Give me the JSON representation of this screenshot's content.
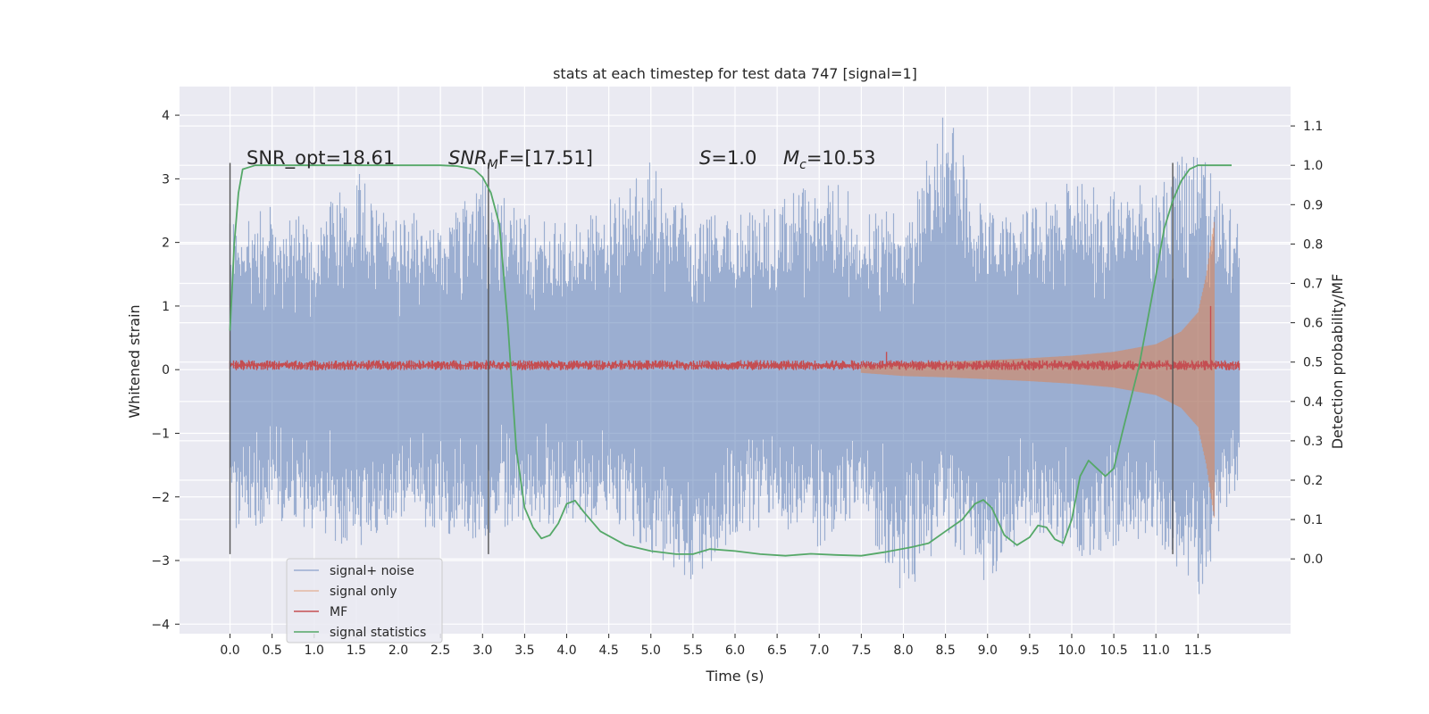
{
  "chart_data": {
    "type": "line",
    "title": "stats at each timestep for test data 747 [signal=1]",
    "xlabel": "Time (s)",
    "ylabel": "Whitened strain",
    "ylabel_right": "Detection probability/MF",
    "xlim": [
      -0.6,
      12.6
    ],
    "ylim": [
      -4.15,
      4.45
    ],
    "ylim_right": [
      -0.19,
      1.2
    ],
    "x_ticks": [
      "0.0",
      "0.5",
      "1.0",
      "1.5",
      "2.0",
      "2.5",
      "3.0",
      "3.5",
      "4.0",
      "4.5",
      "5.0",
      "5.5",
      "6.0",
      "6.5",
      "7.0",
      "7.5",
      "8.0",
      "8.5",
      "9.0",
      "9.5",
      "10.0",
      "10.5",
      "11.0",
      "11.5"
    ],
    "y_ticks": [
      "4",
      "3",
      "2",
      "1",
      "0",
      "−1",
      "−2",
      "−3",
      "−4"
    ],
    "y_ticks_right": [
      "1.1",
      "1.0",
      "0.9",
      "0.8",
      "0.7",
      "0.6",
      "0.5",
      "0.4",
      "0.3",
      "0.2",
      "0.1",
      "0.0"
    ],
    "annotations": {
      "snr_opt": "SNR_opt=18.61",
      "snr_mf_label": "SNR",
      "snr_mf_sub": "M",
      "snr_mf_value": "F=[17.51]",
      "s_label": "S",
      "s_value": "=1.0",
      "mc_label": "M",
      "mc_sub": "c",
      "mc_value": "=10.53"
    },
    "vlines_x": [
      0.0,
      3.07,
      11.2
    ],
    "vlines_range": [
      -2.9,
      3.25
    ],
    "grid": true,
    "legend_position": "lower-left",
    "series": [
      {
        "name": "signal+ noise",
        "color": "#4c72b0",
        "axis": "left",
        "x_range": [
          0.0,
          12.0
        ],
        "envelope_upper": [
          2.45,
          2.6,
          2.3,
          3.2,
          2.4,
          2.6,
          3.0,
          2.5,
          2.3,
          2.7,
          3.3,
          2.4,
          2.5,
          2.6,
          3.1,
          2.7,
          2.4,
          4.1,
          2.6,
          2.5,
          3.0,
          2.8,
          3.1,
          3.5,
          2.4
        ],
        "envelope_lower": [
          -2.6,
          -2.4,
          -2.5,
          -2.9,
          -2.3,
          -2.6,
          -2.7,
          -2.4,
          -2.5,
          -2.3,
          -2.9,
          -3.4,
          -2.6,
          -2.5,
          -2.8,
          -2.4,
          -3.7,
          -2.6,
          -3.5,
          -2.5,
          -3.0,
          -2.8,
          -2.6,
          -3.7,
          -1.7
        ]
      },
      {
        "name": "signal only",
        "color": "#dd8452",
        "axis": "left",
        "x": [
          7.5,
          8.0,
          8.5,
          9.0,
          9.5,
          10.0,
          10.5,
          11.0,
          11.3,
          11.5,
          11.6,
          11.7
        ],
        "amplitude": [
          0.05,
          0.1,
          0.12,
          0.15,
          0.18,
          0.22,
          0.28,
          0.4,
          0.6,
          0.9,
          1.5,
          2.4
        ]
      },
      {
        "name": "MF",
        "color": "#c44e52",
        "axis": "left",
        "baseline": 0.07,
        "spikes": [
          [
            7.8,
            0.28
          ],
          [
            11.65,
            1.0
          ]
        ]
      },
      {
        "name": "signal statistics",
        "color": "#55a868",
        "axis": "right",
        "x": [
          0.0,
          0.05,
          0.1,
          0.15,
          0.3,
          0.6,
          1.0,
          2.0,
          2.5,
          2.7,
          2.9,
          3.0,
          3.1,
          3.2,
          3.3,
          3.4,
          3.5,
          3.6,
          3.7,
          3.8,
          3.9,
          4.0,
          4.1,
          4.2,
          4.4,
          4.7,
          5.0,
          5.3,
          5.5,
          5.7,
          6.0,
          6.3,
          6.6,
          6.9,
          7.2,
          7.5,
          7.8,
          8.1,
          8.3,
          8.5,
          8.7,
          8.85,
          8.95,
          9.05,
          9.2,
          9.35,
          9.5,
          9.6,
          9.7,
          9.8,
          9.9,
          10.0,
          10.1,
          10.2,
          10.3,
          10.4,
          10.5,
          10.6,
          10.8,
          11.0,
          11.1,
          11.2,
          11.3,
          11.4,
          11.5,
          11.7,
          11.9
        ],
        "values": [
          0.58,
          0.8,
          0.93,
          0.99,
          1.0,
          1.0,
          1.0,
          1.0,
          1.0,
          0.998,
          0.99,
          0.97,
          0.93,
          0.85,
          0.6,
          0.28,
          0.13,
          0.08,
          0.052,
          0.06,
          0.09,
          0.14,
          0.148,
          0.12,
          0.07,
          0.035,
          0.02,
          0.012,
          0.012,
          0.025,
          0.02,
          0.012,
          0.008,
          0.013,
          0.01,
          0.008,
          0.018,
          0.03,
          0.04,
          0.07,
          0.1,
          0.14,
          0.15,
          0.13,
          0.06,
          0.035,
          0.055,
          0.085,
          0.08,
          0.05,
          0.04,
          0.1,
          0.21,
          0.25,
          0.23,
          0.21,
          0.23,
          0.32,
          0.49,
          0.72,
          0.84,
          0.91,
          0.96,
          0.99,
          1.0,
          1.0,
          1.0
        ]
      }
    ]
  }
}
